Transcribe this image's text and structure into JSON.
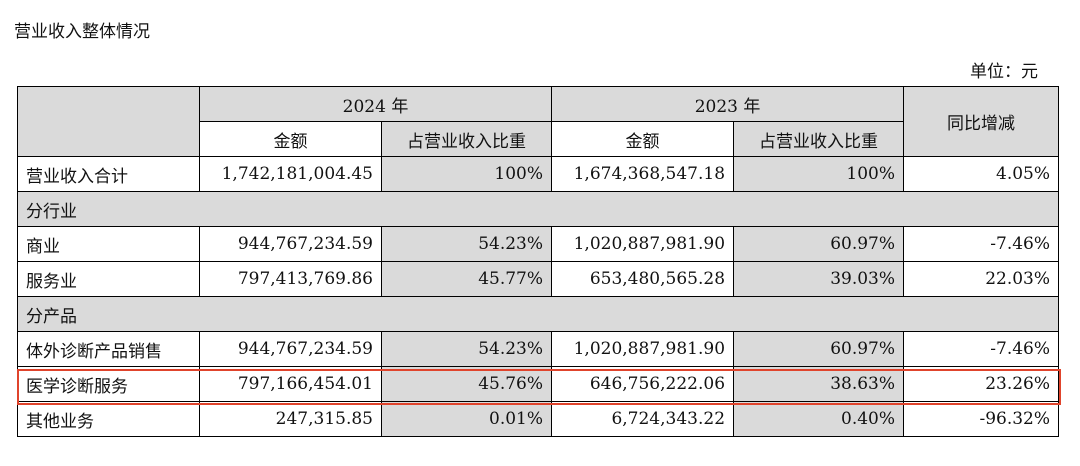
{
  "title": "营业收入整体情况",
  "unit": "单位：元",
  "header": {
    "year_2024": "2024 年",
    "year_2023": "2023 年",
    "yoy": "同比增减",
    "amount_2024": "金额",
    "ratio_2024": "占营业收入比重",
    "amount_2023": "金额",
    "ratio_2023": "占营业收入比重"
  },
  "rows": [
    {
      "label": "营业收入合计",
      "amount_2024": "1,742,181,004.45",
      "ratio_2024": "100%",
      "amount_2023": "1,674,368,547.18",
      "ratio_2023": "100%",
      "yoy": "4.05%"
    },
    {
      "section": "分行业"
    },
    {
      "label": "商业",
      "amount_2024": "944,767,234.59",
      "ratio_2024": "54.23%",
      "amount_2023": "1,020,887,981.90",
      "ratio_2023": "60.97%",
      "yoy": "-7.46%"
    },
    {
      "label": "服务业",
      "amount_2024": "797,413,769.86",
      "ratio_2024": "45.77%",
      "amount_2023": "653,480,565.28",
      "ratio_2023": "39.03%",
      "yoy": "22.03%"
    },
    {
      "section": "分产品"
    },
    {
      "label": "体外诊断产品销售",
      "amount_2024": "944,767,234.59",
      "ratio_2024": "54.23%",
      "amount_2023": "1,020,887,981.90",
      "ratio_2023": "60.97%",
      "yoy": "-7.46%"
    },
    {
      "label": "医学诊断服务",
      "amount_2024": "797,166,454.01",
      "ratio_2024": "45.76%",
      "amount_2023": "646,756,222.06",
      "ratio_2023": "38.63%",
      "yoy": "23.26%"
    },
    {
      "label": "其他业务",
      "amount_2024": "247,315.85",
      "ratio_2024": "0.01%",
      "amount_2023": "6,724,343.22",
      "ratio_2023": "0.40%",
      "yoy": "-96.32%"
    }
  ],
  "colors": {
    "header_grey": "#dadada",
    "highlight_border": "#e0442c"
  }
}
